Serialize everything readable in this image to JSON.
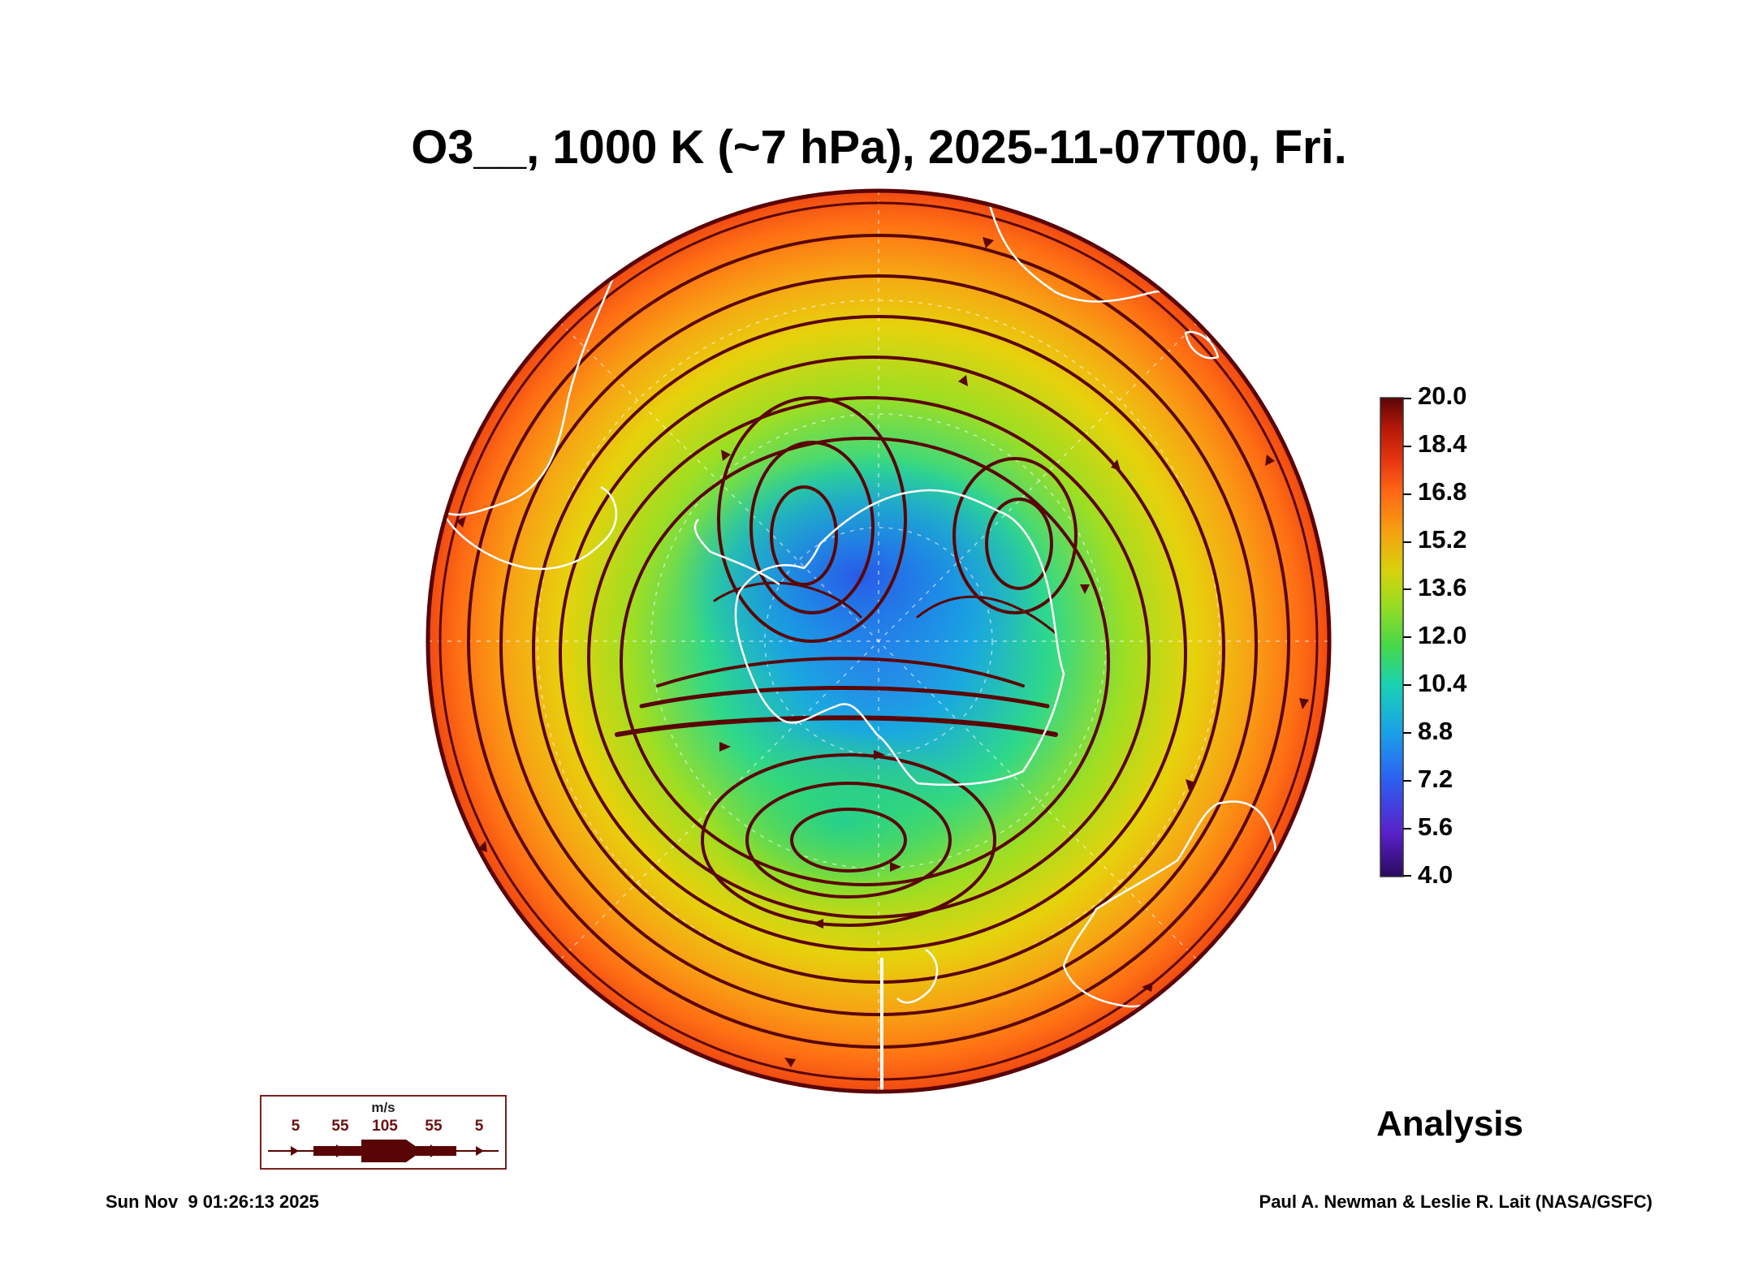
{
  "title": "O3__, 1000 K (~7 hPa), 2025-11-07T00, Fri.",
  "colorbar": {
    "ticks": [
      "20.0",
      "18.4",
      "16.8",
      "15.2",
      "13.6",
      "12.0",
      "10.4",
      "8.8",
      "7.2",
      "5.6",
      "4.0"
    ],
    "min": 4.0,
    "max": 20.0,
    "colors": [
      "#2a0a5e",
      "#5a20c8",
      "#2d5ef0",
      "#1aa0e8",
      "#19d2b4",
      "#44d84a",
      "#9bdc20",
      "#d8d20c",
      "#f5a011",
      "#ff6a14",
      "#e63510",
      "#b01808",
      "#5a0505"
    ]
  },
  "wind_legend": {
    "unit": "m/s",
    "values": [
      "5",
      "55",
      "105",
      "55",
      "5"
    ]
  },
  "label": "Analysis",
  "timestamp": "Sun Nov  9 01:26:13 2025",
  "credit": "Paul A. Newman & Leslie R. Lait (NASA/GSFC)",
  "colors": {
    "streamline": "#5a0505",
    "coastline": "#ffffff",
    "frame": "#6b1010"
  }
}
